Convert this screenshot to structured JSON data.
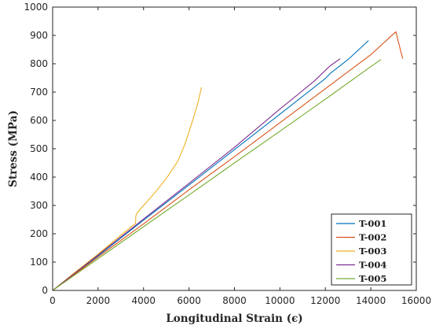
{
  "chart_data": {
    "type": "line",
    "xlabel": "Longitudinal Strain (ϵ)",
    "ylabel": "Stress (MPa)",
    "xlim": [
      0,
      16000
    ],
    "ylim": [
      0,
      1000
    ],
    "x_ticks": [
      0,
      2000,
      4000,
      6000,
      8000,
      10000,
      12000,
      14000,
      16000
    ],
    "y_ticks": [
      0,
      100,
      200,
      300,
      400,
      500,
      600,
      700,
      800,
      900,
      1000
    ],
    "x_tick_labels": [
      "0",
      "2000",
      "4000",
      "6000",
      "8000",
      "10000",
      "12000",
      "14000",
      "16000"
    ],
    "y_tick_labels": [
      "0",
      "100",
      "200",
      "300",
      "400",
      "500",
      "600",
      "700",
      "800",
      "900",
      "1000"
    ],
    "grid": false,
    "legend_position": "bottom-right",
    "series": [
      {
        "name": "T-001",
        "color": "#0072BD",
        "x": [
          0,
          2000,
          4000,
          6000,
          8000,
          10000,
          12000,
          12200,
          13000,
          13900
        ],
        "y": [
          0,
          122,
          248,
          372,
          497,
          622,
          748,
          765,
          815,
          882
        ]
      },
      {
        "name": "T-002",
        "color": "#D95319",
        "x": [
          0,
          2000,
          4000,
          6000,
          8000,
          10000,
          12000,
          14000,
          15100,
          15400
        ],
        "y": [
          0,
          118,
          235,
          355,
          472,
          592,
          712,
          832,
          913,
          818
        ]
      },
      {
        "name": "T-003",
        "color": "#EDB120",
        "x": [
          0,
          1000,
          2000,
          3000,
          3650,
          3660,
          3700,
          4000,
          4500,
          5000,
          5500,
          5800,
          6000,
          6200,
          6400,
          6550
        ],
        "y": [
          0,
          65,
          128,
          195,
          237,
          262,
          272,
          300,
          345,
          395,
          455,
          512,
          560,
          610,
          665,
          717
        ]
      },
      {
        "name": "T-004",
        "color": "#7E2F8E",
        "x": [
          0,
          2000,
          4000,
          6000,
          8000,
          10000,
          11500,
          12200,
          12650
        ],
        "y": [
          0,
          125,
          252,
          378,
          505,
          640,
          738,
          792,
          818
        ]
      },
      {
        "name": "T-005",
        "color": "#77AC30",
        "x": [
          0,
          2000,
          4000,
          6000,
          8000,
          10000,
          12000,
          14000,
          14450
        ],
        "y": [
          0,
          112,
          225,
          337,
          450,
          562,
          675,
          790,
          815
        ]
      }
    ]
  }
}
